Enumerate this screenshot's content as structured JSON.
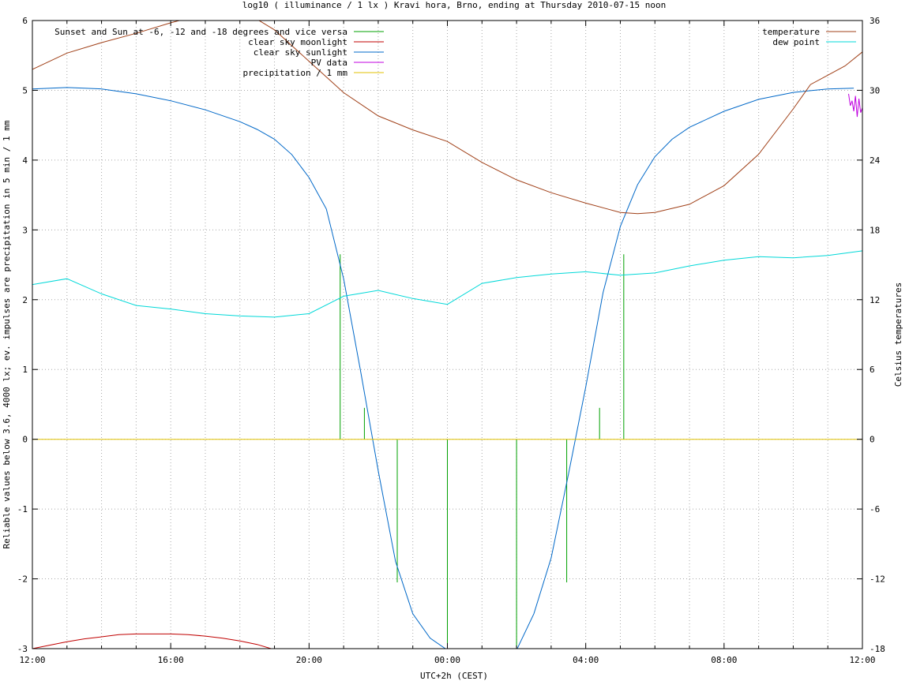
{
  "chart_data": {
    "type": "line",
    "title": "log10 ( illuminance / 1 lx ) Kravi hora, Brno, ending at Thursday 2010-07-15 noon",
    "xlabel": "UTC+2h (CEST)",
    "ylabel": "Reliable values below 3.6, 4000 lx; ev. impulses are precipitation in 5 min / 1 mm",
    "y2label": "Celsius temperatures",
    "xlim": [
      12,
      36
    ],
    "ylim": [
      -3,
      6
    ],
    "y2lim": [
      -18,
      36
    ],
    "x_ticks": [
      12,
      16,
      20,
      24,
      28,
      32,
      36
    ],
    "x_tick_labels": [
      "12:00",
      "16:00",
      "20:00",
      "00:00",
      "04:00",
      "08:00",
      "12:00"
    ],
    "y_ticks": [
      -3,
      -2,
      -1,
      0,
      1,
      2,
      3,
      4,
      5,
      6
    ],
    "y_tick_labels": [
      "-3",
      "-2",
      "-1",
      "0",
      "1",
      "2",
      "3",
      "4",
      "5",
      "6"
    ],
    "y2_ticks": [
      -18,
      -12,
      -6,
      0,
      6,
      12,
      18,
      24,
      30,
      36
    ],
    "y2_tick_labels": [
      "-18",
      "-12",
      "-6",
      "0",
      "6",
      "12",
      "18",
      "24",
      "30",
      "36"
    ],
    "grid": true,
    "legend_left": [
      "Sunset and Sun at -6, -12 and -18 degrees and vice versa",
      "clear sky moonlight",
      "clear sky sunlight",
      "PV data",
      "precipitation / 1 mm"
    ],
    "legend_right": [
      "temperature",
      "dew point"
    ],
    "series": [
      {
        "name": "Sunset and Sun at -6, -12 and -18 degrees and vice versa",
        "color": "#00a000",
        "kind": "impulse",
        "axis": "y1",
        "x": [
          20.9,
          21.6,
          22.55,
          24.0,
          26.0,
          27.45,
          28.4,
          29.1
        ],
        "values": [
          2.65,
          0.45,
          -2.05,
          -3.0,
          -3.0,
          -2.05,
          0.45,
          2.65
        ]
      },
      {
        "name": "clear sky moonlight",
        "color": "#c00000",
        "axis": "y1",
        "x": [
          12.0,
          12.5,
          13.0,
          13.5,
          14.0,
          14.5,
          15.0,
          15.5,
          16.0,
          16.5,
          17.0,
          17.5,
          18.0,
          18.5,
          18.9
        ],
        "values": [
          -3.0,
          -2.95,
          -2.9,
          -2.86,
          -2.83,
          -2.8,
          -2.79,
          -2.79,
          -2.79,
          -2.8,
          -2.82,
          -2.85,
          -2.89,
          -2.94,
          -3.0
        ]
      },
      {
        "name": "clear sky sunlight",
        "color": "#0068c8",
        "axis": "y1",
        "x": [
          12.0,
          13.0,
          14.0,
          15.0,
          16.0,
          17.0,
          18.0,
          18.5,
          19.0,
          19.5,
          20.0,
          20.5,
          21.0,
          21.5,
          22.0,
          22.5,
          23.0,
          23.5,
          24.0,
          26.0,
          26.5,
          27.0,
          27.5,
          28.0,
          28.5,
          29.0,
          29.5,
          30.0,
          30.5,
          31.0,
          32.0,
          33.0,
          34.0,
          35.0,
          35.75
        ],
        "values": [
          5.02,
          5.04,
          5.02,
          4.95,
          4.85,
          4.72,
          4.55,
          4.44,
          4.3,
          4.08,
          3.75,
          3.3,
          2.3,
          0.95,
          -0.45,
          -1.75,
          -2.5,
          -2.85,
          -3.02,
          -3.02,
          -2.5,
          -1.7,
          -0.5,
          0.75,
          2.1,
          3.05,
          3.65,
          4.05,
          4.3,
          4.47,
          4.7,
          4.87,
          4.97,
          5.02,
          5.03
        ]
      },
      {
        "name": "PV data",
        "color": "#c000e0",
        "axis": "y1",
        "x": [
          35.6,
          35.65,
          35.7,
          35.75,
          35.8,
          35.85,
          35.9,
          35.95,
          36.0
        ],
        "values": [
          4.95,
          4.78,
          4.85,
          4.7,
          4.92,
          4.62,
          4.88,
          4.68,
          4.75
        ]
      },
      {
        "name": "precipitation / 1 mm",
        "color": "#e0c000",
        "axis": "y1",
        "x": [
          12,
          36
        ],
        "values": [
          0,
          0
        ]
      },
      {
        "name": "temperature",
        "color": "#a04018",
        "axis": "y2",
        "x": [
          12.0,
          13.0,
          14.0,
          15.0,
          16.0,
          17.0,
          18.0,
          19.0,
          20.0,
          21.0,
          22.0,
          23.0,
          24.0,
          25.0,
          26.0,
          27.0,
          28.0,
          28.5,
          29.0,
          29.5,
          30.0,
          31.0,
          32.0,
          33.0,
          34.0,
          34.5,
          35.0,
          35.5,
          36.0
        ],
        "values": [
          31.8,
          33.2,
          34.1,
          34.9,
          35.8,
          36.6,
          37.0,
          35.2,
          32.5,
          29.8,
          27.8,
          26.6,
          25.6,
          23.8,
          22.3,
          21.2,
          20.3,
          19.9,
          19.5,
          19.4,
          19.5,
          20.2,
          21.8,
          24.5,
          28.4,
          30.5,
          31.3,
          32.1,
          33.3
        ]
      },
      {
        "name": "dew point",
        "color": "#00d8d8",
        "axis": "y2",
        "x": [
          12.0,
          13.0,
          14.0,
          15.0,
          16.0,
          17.0,
          18.0,
          19.0,
          20.0,
          21.0,
          22.0,
          23.0,
          24.0,
          25.0,
          26.0,
          27.0,
          28.0,
          29.0,
          30.0,
          31.0,
          32.0,
          33.0,
          34.0,
          35.0,
          36.0
        ],
        "values": [
          13.3,
          13.8,
          12.5,
          11.5,
          11.2,
          10.8,
          10.6,
          10.5,
          10.8,
          12.3,
          12.8,
          12.1,
          11.6,
          13.4,
          13.9,
          14.2,
          14.4,
          14.1,
          14.3,
          14.9,
          15.4,
          15.7,
          15.6,
          15.8,
          16.2
        ]
      }
    ]
  }
}
